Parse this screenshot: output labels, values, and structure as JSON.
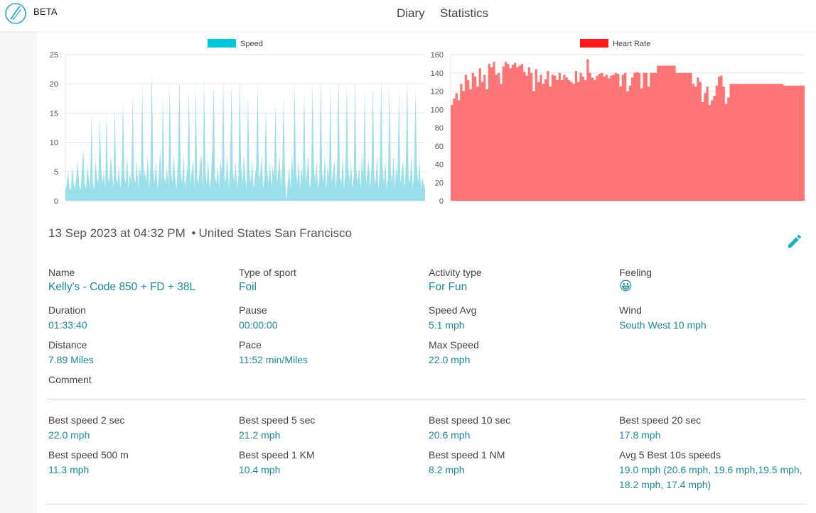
{
  "header": {
    "brand": "BETA",
    "nav": [
      {
        "label": "Diary"
      },
      {
        "label": "Statistics"
      }
    ]
  },
  "colors": {
    "speed_fill": "#9adfea",
    "speed_legend": "#00c6dc",
    "hr_fill": "#ff7575",
    "hr_legend": "#ff1a1a",
    "accent": "#1a8a9a",
    "edit_icon": "#1fb0c8"
  },
  "chart_data": [
    {
      "type": "area",
      "legend": [
        "Speed"
      ],
      "ylim": [
        0,
        25
      ],
      "yticks": [
        "0",
        "5",
        "10",
        "15",
        "20",
        "25"
      ],
      "series": [
        {
          "name": "Speed",
          "values": [
            1.5,
            3,
            5,
            2,
            1.8,
            6,
            3,
            2,
            4,
            7,
            2.5,
            1.8,
            5,
            9,
            3,
            2,
            6,
            4,
            2,
            15,
            3,
            2,
            7,
            4,
            3,
            14,
            6,
            3,
            5,
            2,
            15,
            4,
            3,
            8,
            5,
            2,
            16,
            4,
            3,
            6,
            2,
            5,
            17,
            4,
            3,
            8,
            2,
            5,
            3,
            18,
            4,
            3,
            7,
            2,
            6,
            4,
            20,
            4,
            5,
            3,
            8,
            2,
            6,
            22,
            5,
            3,
            7,
            2,
            4,
            9,
            3,
            18,
            4,
            3,
            6,
            2,
            20,
            5,
            3,
            8,
            4,
            2,
            7,
            21,
            5,
            3,
            8,
            2,
            4,
            6,
            19,
            3,
            5,
            7,
            2,
            20,
            4,
            3,
            6,
            8,
            2,
            21,
            5,
            3,
            7,
            2,
            4,
            9,
            20,
            4,
            3,
            6,
            2,
            7,
            5,
            21,
            3,
            4,
            8,
            2,
            6,
            20,
            5,
            3,
            7,
            2,
            4,
            21,
            6,
            3,
            8,
            4,
            2,
            18,
            5,
            3,
            7,
            2,
            4,
            6,
            20,
            3,
            5,
            8,
            2,
            4,
            16,
            5,
            3,
            7,
            2,
            6,
            4,
            17,
            3,
            5,
            8,
            2,
            6,
            18,
            4,
            0,
            3,
            6,
            2,
            8,
            4,
            20,
            5,
            3,
            7,
            2,
            6,
            4,
            19,
            3,
            5,
            8,
            2,
            4,
            20,
            6,
            3,
            7,
            2,
            4,
            21,
            5,
            3,
            8,
            2,
            6,
            4,
            20,
            3,
            5,
            7,
            2,
            6,
            21,
            4,
            3,
            8,
            2,
            5,
            20,
            6,
            3,
            7,
            2,
            4,
            21,
            5,
            3,
            6,
            2,
            8,
            4,
            19,
            3,
            5,
            7,
            2,
            6,
            20,
            4,
            3,
            8,
            2,
            5,
            21,
            6,
            3,
            7,
            2,
            4,
            20,
            5,
            3,
            8,
            2,
            6,
            4,
            19,
            3,
            5,
            7,
            2,
            6,
            21,
            4,
            3,
            8,
            2,
            5,
            19,
            6,
            3,
            7,
            2,
            4,
            3,
            2
          ]
        }
      ]
    },
    {
      "type": "area",
      "legend": [
        "Heart Rate"
      ],
      "ylim": [
        0,
        160
      ],
      "yticks": [
        "0",
        "20",
        "40",
        "60",
        "80",
        "100",
        "120",
        "140",
        "160"
      ],
      "series": [
        {
          "name": "Heart Rate",
          "values": [
            105,
            112,
            118,
            110,
            128,
            120,
            138,
            132,
            122,
            140,
            136,
            125,
            145,
            130,
            138,
            122,
            150,
            146,
            152,
            138,
            140,
            128,
            147,
            152,
            150,
            145,
            149,
            151,
            146,
            148,
            150,
            141,
            137,
            146,
            140,
            120,
            144,
            130,
            138,
            128,
            133,
            142,
            125,
            138,
            137,
            132,
            140,
            132,
            138,
            135,
            132,
            130,
            128,
            142,
            130,
            140,
            136,
            132,
            155,
            140,
            135,
            132,
            137,
            139,
            140,
            136,
            138,
            134,
            137,
            138,
            140,
            139,
            125,
            138,
            140,
            120,
            126,
            135,
            140,
            141,
            140,
            123,
            140,
            140,
            125,
            140,
            140,
            140,
            148,
            148,
            148,
            148,
            148,
            148,
            148,
            148,
            140,
            140,
            140,
            140,
            140,
            140,
            140,
            128,
            125,
            135,
            130,
            108,
            118,
            125,
            105,
            110,
            115,
            126,
            136,
            137,
            125,
            106,
            113,
            128,
            128,
            128,
            128,
            128,
            128,
            128,
            128,
            128,
            128,
            128,
            128,
            128,
            128,
            128,
            128,
            128,
            128,
            128,
            128,
            128,
            128,
            128,
            126,
            126,
            126,
            126,
            126,
            126,
            126,
            126,
            126,
            126
          ]
        }
      ]
    }
  ],
  "activity": {
    "date_time": "13 Sep 2023 at 04:32 PM",
    "separator": "•",
    "location": "United States San Francisco",
    "fields": [
      {
        "label": "Name",
        "value": "Kelly's - Code 850 + FD + 38L"
      },
      {
        "label": "Type of sport",
        "value": "Foil"
      },
      {
        "label": "Activity type",
        "value": "For Fun"
      },
      {
        "label": "Feeling",
        "value": "😀"
      },
      {
        "label": "Duration",
        "value": "01:33:40"
      },
      {
        "label": "Pause",
        "value": "00:00:00"
      },
      {
        "label": "Speed Avg",
        "value": "5.1 mph"
      },
      {
        "label": "Wind",
        "value": "South West 10 mph"
      },
      {
        "label": "Distance",
        "value": "7.89 Miles"
      },
      {
        "label": "Pace",
        "value": "11:52 min/Miles"
      },
      {
        "label": "Max Speed",
        "value": "22.0 mph"
      },
      {
        "label": "Comment",
        "value": ""
      }
    ],
    "best": [
      {
        "label": "Best speed 2 sec",
        "value": "22.0 mph"
      },
      {
        "label": "Best speed 5 sec",
        "value": "21.2 mph"
      },
      {
        "label": "Best speed 10 sec",
        "value": "20.6 mph"
      },
      {
        "label": "Best speed 20 sec",
        "value": "17.8 mph"
      },
      {
        "label": "Best speed 500 m",
        "value": "11.3 mph"
      },
      {
        "label": "Best speed 1 KM",
        "value": "10.4 mph"
      },
      {
        "label": "Best speed 1 NM",
        "value": "8.2 mph"
      },
      {
        "label": "Avg 5 Best 10s speeds",
        "value": "19.0 mph (20.6 mph, 19.6 mph,19.5 mph, 18.2 mph, 17.4 mph)"
      }
    ]
  }
}
